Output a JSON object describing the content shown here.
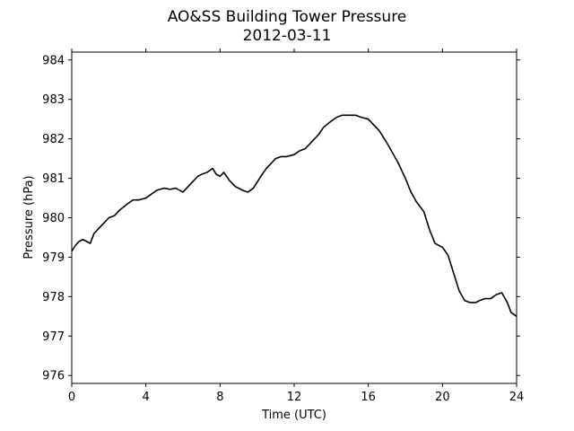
{
  "chart_data": {
    "type": "line",
    "title": "AO&SS Building Tower Pressure",
    "subtitle": "2012-03-11",
    "xlabel": "Time (UTC)",
    "ylabel": "Pressure (hPa)",
    "xlim": [
      0,
      24
    ],
    "ylim": [
      975.8,
      984.2
    ],
    "xticks": [
      0,
      4,
      8,
      12,
      16,
      20,
      24
    ],
    "yticks": [
      976,
      977,
      978,
      979,
      980,
      981,
      982,
      983,
      984
    ],
    "grid": false,
    "legend": "none",
    "line_color": "#000000",
    "series": [
      {
        "x": [
          0.0,
          0.2,
          0.4,
          0.6,
          0.8,
          1.0,
          1.2,
          1.5,
          1.8,
          2.0,
          2.3,
          2.6,
          3.0,
          3.3,
          3.6,
          4.0,
          4.3,
          4.6,
          5.0,
          5.3,
          5.6,
          6.0,
          6.2,
          6.5,
          6.8,
          7.0,
          7.3,
          7.6,
          7.8,
          8.0,
          8.2,
          8.5,
          8.8,
          9.0,
          9.2,
          9.5,
          9.8,
          10.0,
          10.2,
          10.5,
          10.8,
          11.0,
          11.3,
          11.6,
          12.0,
          12.3,
          12.6,
          13.0,
          13.3,
          13.6,
          14.0,
          14.3,
          14.6,
          15.0,
          15.3,
          15.6,
          16.0,
          16.3,
          16.6,
          17.0,
          17.3,
          17.6,
          18.0,
          18.3,
          18.6,
          19.0,
          19.3,
          19.6,
          20.0,
          20.3,
          20.6,
          20.9,
          21.2,
          21.5,
          21.8,
          22.0,
          22.3,
          22.6,
          22.9,
          23.2,
          23.5,
          23.7,
          24.0
        ],
        "y": [
          979.15,
          979.3,
          979.4,
          979.45,
          979.4,
          979.35,
          979.6,
          979.75,
          979.9,
          980.0,
          980.05,
          980.2,
          980.35,
          980.45,
          980.45,
          980.5,
          980.6,
          980.7,
          980.75,
          980.72,
          980.75,
          980.65,
          980.75,
          980.9,
          981.05,
          981.1,
          981.15,
          981.25,
          981.1,
          981.05,
          981.15,
          980.95,
          980.8,
          980.75,
          980.7,
          980.65,
          980.75,
          980.9,
          981.05,
          981.25,
          981.4,
          981.5,
          981.55,
          981.55,
          981.6,
          981.7,
          981.75,
          981.95,
          982.1,
          982.3,
          982.45,
          982.55,
          982.6,
          982.6,
          982.6,
          982.55,
          982.5,
          982.35,
          982.2,
          981.9,
          981.65,
          981.4,
          981.0,
          980.65,
          980.4,
          980.15,
          979.7,
          979.35,
          979.25,
          979.05,
          978.6,
          978.15,
          977.9,
          977.85,
          977.85,
          977.9,
          977.95,
          977.95,
          978.05,
          978.1,
          977.85,
          977.6,
          977.5
        ]
      }
    ]
  }
}
